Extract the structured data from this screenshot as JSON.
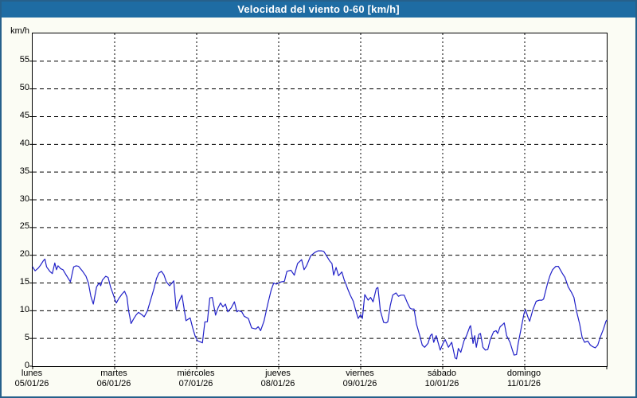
{
  "window": {
    "title": "Velocidad del viento 0-60 [km/h]"
  },
  "colors": {
    "titlebar_bg": "#1E6CA3",
    "title_fg": "#FFFFFF",
    "frame_border": "#26608B",
    "page_bg": "#FBFCF4",
    "plot_bg": "#FFFFFF",
    "grid": "#000000",
    "line": "#2121C8",
    "label_fg": "#000000"
  },
  "chart_data": {
    "type": "line",
    "title": "Velocidad del viento 0-60 [km/h]",
    "ylabel": "km/h",
    "xlabel": "",
    "ylim": [
      0,
      60
    ],
    "yticks": [
      0,
      5,
      10,
      15,
      20,
      25,
      30,
      35,
      40,
      45,
      50,
      55
    ],
    "grid": "dashed",
    "legend": "none",
    "x_days": [
      {
        "name": "lunes",
        "date": "05/01/26"
      },
      {
        "name": "martes",
        "date": "06/01/26"
      },
      {
        "name": "miércoles",
        "date": "07/01/26"
      },
      {
        "name": "jueves",
        "date": "08/01/26"
      },
      {
        "name": "viernes",
        "date": "09/01/26"
      },
      {
        "name": "sábado",
        "date": "10/01/26"
      },
      {
        "name": "domingo",
        "date": "11/01/26"
      }
    ],
    "series": [
      {
        "name": "Velocidad del viento",
        "unit": "km/h",
        "x_unit": "days_since_2026-01-05",
        "points": [
          [
            0.0,
            17.9
          ],
          [
            0.03,
            17.2
          ],
          [
            0.07,
            17.7
          ],
          [
            0.1,
            18.3
          ],
          [
            0.13,
            19.0
          ],
          [
            0.15,
            19.3
          ],
          [
            0.17,
            17.9
          ],
          [
            0.21,
            17.1
          ],
          [
            0.24,
            16.7
          ],
          [
            0.27,
            18.6
          ],
          [
            0.29,
            17.4
          ],
          [
            0.31,
            18.1
          ],
          [
            0.34,
            17.6
          ],
          [
            0.37,
            17.4
          ],
          [
            0.41,
            16.4
          ],
          [
            0.46,
            15.2
          ],
          [
            0.5,
            17.9
          ],
          [
            0.53,
            18.1
          ],
          [
            0.56,
            18.0
          ],
          [
            0.61,
            17.1
          ],
          [
            0.65,
            16.2
          ],
          [
            0.68,
            15.0
          ],
          [
            0.71,
            12.6
          ],
          [
            0.74,
            11.2
          ],
          [
            0.78,
            14.3
          ],
          [
            0.81,
            15.0
          ],
          [
            0.83,
            14.5
          ],
          [
            0.85,
            15.5
          ],
          [
            0.89,
            16.2
          ],
          [
            0.92,
            16.0
          ],
          [
            0.95,
            14.3
          ],
          [
            0.99,
            12.6
          ],
          [
            1.0,
            12.1
          ],
          [
            1.02,
            11.4
          ],
          [
            1.05,
            12.2
          ],
          [
            1.09,
            13.0
          ],
          [
            1.12,
            13.5
          ],
          [
            1.15,
            12.5
          ],
          [
            1.17,
            10.0
          ],
          [
            1.2,
            7.7
          ],
          [
            1.23,
            8.5
          ],
          [
            1.26,
            9.2
          ],
          [
            1.29,
            9.7
          ],
          [
            1.33,
            9.3
          ],
          [
            1.36,
            8.9
          ],
          [
            1.4,
            10.0
          ],
          [
            1.44,
            12.0
          ],
          [
            1.48,
            14.0
          ],
          [
            1.51,
            15.8
          ],
          [
            1.54,
            16.8
          ],
          [
            1.57,
            17.1
          ],
          [
            1.6,
            16.5
          ],
          [
            1.63,
            15.2
          ],
          [
            1.67,
            14.5
          ],
          [
            1.7,
            15.0
          ],
          [
            1.72,
            15.4
          ],
          [
            1.75,
            10.2
          ],
          [
            1.78,
            11.5
          ],
          [
            1.82,
            12.8
          ],
          [
            1.84,
            11.0
          ],
          [
            1.87,
            8.2
          ],
          [
            1.9,
            8.5
          ],
          [
            1.92,
            8.7
          ],
          [
            1.95,
            7.0
          ],
          [
            1.98,
            5.5
          ],
          [
            2.01,
            4.6
          ],
          [
            2.04,
            4.4
          ],
          [
            2.07,
            4.2
          ],
          [
            2.1,
            8.0
          ],
          [
            2.13,
            8.0
          ],
          [
            2.16,
            12.3
          ],
          [
            2.19,
            12.4
          ],
          [
            2.23,
            9.2
          ],
          [
            2.26,
            10.5
          ],
          [
            2.29,
            11.4
          ],
          [
            2.32,
            10.7
          ],
          [
            2.35,
            11.2
          ],
          [
            2.38,
            9.8
          ],
          [
            2.42,
            10.5
          ],
          [
            2.46,
            11.6
          ],
          [
            2.49,
            9.8
          ],
          [
            2.51,
            10.0
          ],
          [
            2.55,
            9.8
          ],
          [
            2.58,
            9.0
          ],
          [
            2.63,
            8.6
          ],
          [
            2.67,
            6.9
          ],
          [
            2.72,
            6.7
          ],
          [
            2.75,
            7.1
          ],
          [
            2.78,
            6.4
          ],
          [
            2.82,
            8.1
          ],
          [
            2.87,
            11.4
          ],
          [
            2.91,
            13.8
          ],
          [
            2.94,
            15.0
          ],
          [
            2.97,
            14.8
          ],
          [
            3.0,
            15.0
          ],
          [
            3.03,
            15.2
          ],
          [
            3.07,
            15.3
          ],
          [
            3.1,
            17.1
          ],
          [
            3.15,
            17.3
          ],
          [
            3.19,
            16.4
          ],
          [
            3.23,
            18.5
          ],
          [
            3.28,
            19.2
          ],
          [
            3.31,
            17.4
          ],
          [
            3.34,
            18.1
          ],
          [
            3.39,
            19.9
          ],
          [
            3.44,
            20.5
          ],
          [
            3.48,
            20.8
          ],
          [
            3.52,
            20.8
          ],
          [
            3.55,
            20.7
          ],
          [
            3.58,
            20.0
          ],
          [
            3.62,
            19.0
          ],
          [
            3.65,
            18.5
          ],
          [
            3.67,
            16.4
          ],
          [
            3.7,
            17.8
          ],
          [
            3.73,
            16.3
          ],
          [
            3.77,
            17.0
          ],
          [
            3.8,
            15.5
          ],
          [
            3.82,
            14.8
          ],
          [
            3.84,
            14.0
          ],
          [
            3.87,
            12.9
          ],
          [
            3.91,
            11.7
          ],
          [
            3.94,
            10.0
          ],
          [
            3.97,
            8.6
          ],
          [
            4.0,
            9.3
          ],
          [
            4.02,
            8.6
          ],
          [
            4.05,
            12.9
          ],
          [
            4.09,
            11.9
          ],
          [
            4.12,
            12.4
          ],
          [
            4.15,
            11.6
          ],
          [
            4.19,
            14.0
          ],
          [
            4.21,
            14.2
          ],
          [
            4.24,
            10.0
          ],
          [
            4.28,
            7.9
          ],
          [
            4.31,
            7.8
          ],
          [
            4.33,
            8.0
          ],
          [
            4.36,
            10.9
          ],
          [
            4.39,
            12.8
          ],
          [
            4.43,
            13.2
          ],
          [
            4.46,
            12.6
          ],
          [
            4.49,
            12.8
          ],
          [
            4.53,
            12.8
          ],
          [
            4.57,
            11.4
          ],
          [
            4.6,
            10.5
          ],
          [
            4.62,
            10.3
          ],
          [
            4.65,
            10.3
          ],
          [
            4.68,
            7.6
          ],
          [
            4.72,
            5.5
          ],
          [
            4.75,
            3.8
          ],
          [
            4.78,
            3.4
          ],
          [
            4.82,
            4.1
          ],
          [
            4.85,
            5.5
          ],
          [
            4.87,
            5.8
          ],
          [
            4.89,
            4.3
          ],
          [
            4.92,
            5.5
          ],
          [
            4.96,
            3.4
          ],
          [
            4.97,
            2.9
          ],
          [
            5.0,
            4.0
          ],
          [
            5.03,
            4.8
          ],
          [
            5.07,
            3.4
          ],
          [
            5.11,
            4.3
          ],
          [
            5.15,
            1.5
          ],
          [
            5.17,
            1.3
          ],
          [
            5.19,
            3.2
          ],
          [
            5.22,
            2.5
          ],
          [
            5.26,
            4.6
          ],
          [
            5.29,
            5.5
          ],
          [
            5.33,
            7.1
          ],
          [
            5.34,
            7.3
          ],
          [
            5.37,
            4.1
          ],
          [
            5.39,
            5.5
          ],
          [
            5.41,
            3.4
          ],
          [
            5.44,
            5.7
          ],
          [
            5.46,
            5.9
          ],
          [
            5.49,
            3.4
          ],
          [
            5.52,
            2.9
          ],
          [
            5.55,
            3.0
          ],
          [
            5.58,
            4.8
          ],
          [
            5.62,
            6.2
          ],
          [
            5.65,
            6.4
          ],
          [
            5.67,
            5.9
          ],
          [
            5.7,
            7.1
          ],
          [
            5.73,
            7.5
          ],
          [
            5.75,
            7.8
          ],
          [
            5.78,
            5.5
          ],
          [
            5.82,
            4.3
          ],
          [
            5.85,
            2.9
          ],
          [
            5.87,
            2.0
          ],
          [
            5.9,
            2.1
          ],
          [
            5.92,
            4.1
          ],
          [
            5.96,
            7.1
          ],
          [
            5.99,
            9.4
          ],
          [
            6.0,
            9.9
          ],
          [
            6.01,
            10.2
          ],
          [
            6.04,
            8.8
          ],
          [
            6.06,
            8.1
          ],
          [
            6.1,
            10.2
          ],
          [
            6.14,
            11.7
          ],
          [
            6.18,
            11.9
          ],
          [
            6.21,
            11.9
          ],
          [
            6.23,
            12.1
          ],
          [
            6.28,
            15.0
          ],
          [
            6.31,
            16.4
          ],
          [
            6.34,
            17.4
          ],
          [
            6.38,
            18.0
          ],
          [
            6.41,
            18.0
          ],
          [
            6.46,
            16.7
          ],
          [
            6.49,
            16.0
          ],
          [
            6.53,
            14.3
          ],
          [
            6.57,
            13.3
          ],
          [
            6.6,
            12.4
          ],
          [
            6.63,
            10.0
          ],
          [
            6.67,
            7.6
          ],
          [
            6.7,
            5.2
          ],
          [
            6.73,
            4.3
          ],
          [
            6.77,
            4.5
          ],
          [
            6.8,
            3.8
          ],
          [
            6.83,
            3.5
          ],
          [
            6.86,
            3.3
          ],
          [
            6.89,
            3.8
          ],
          [
            6.92,
            5.2
          ],
          [
            6.96,
            6.7
          ],
          [
            6.99,
            8.1
          ],
          [
            7.0,
            8.3
          ]
        ]
      }
    ]
  }
}
